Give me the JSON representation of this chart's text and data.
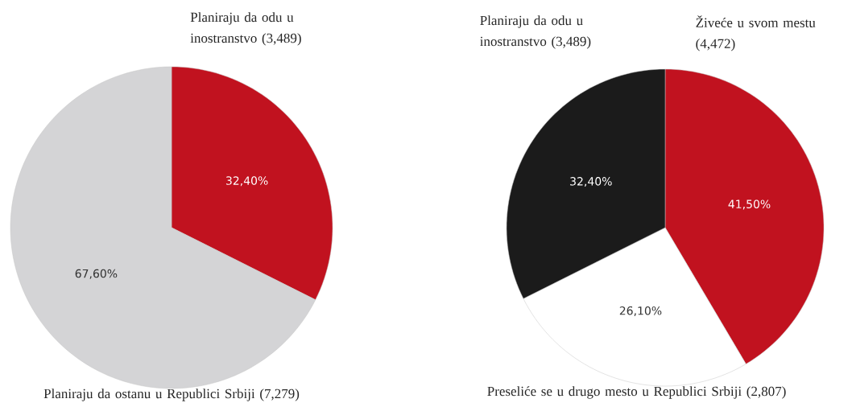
{
  "chart_data": [
    {
      "type": "pie",
      "categories": [
        "Planiraju da odu u inostranstvo (3,489)",
        "Planiraju da ostanu u Republici Srbiji (7,279)"
      ],
      "values": [
        32.4,
        67.6
      ],
      "colors": [
        "#c1121f",
        "#d4d4d6"
      ],
      "value_labels": [
        "32,40%",
        "67,60%"
      ]
    },
    {
      "type": "pie",
      "categories": [
        "Živeće u svom mestu (4,472)",
        "Preseliće se u drugo mesto u Republici Srbiji (2,807)",
        "Planiraju da odu u inostranstvo (3,489)"
      ],
      "values": [
        41.5,
        26.1,
        32.4
      ],
      "colors": [
        "#c1121f",
        "#ffffff",
        "#1b1b1b"
      ],
      "value_labels": [
        "41,50%",
        "26,10%",
        "32,40%"
      ]
    }
  ]
}
